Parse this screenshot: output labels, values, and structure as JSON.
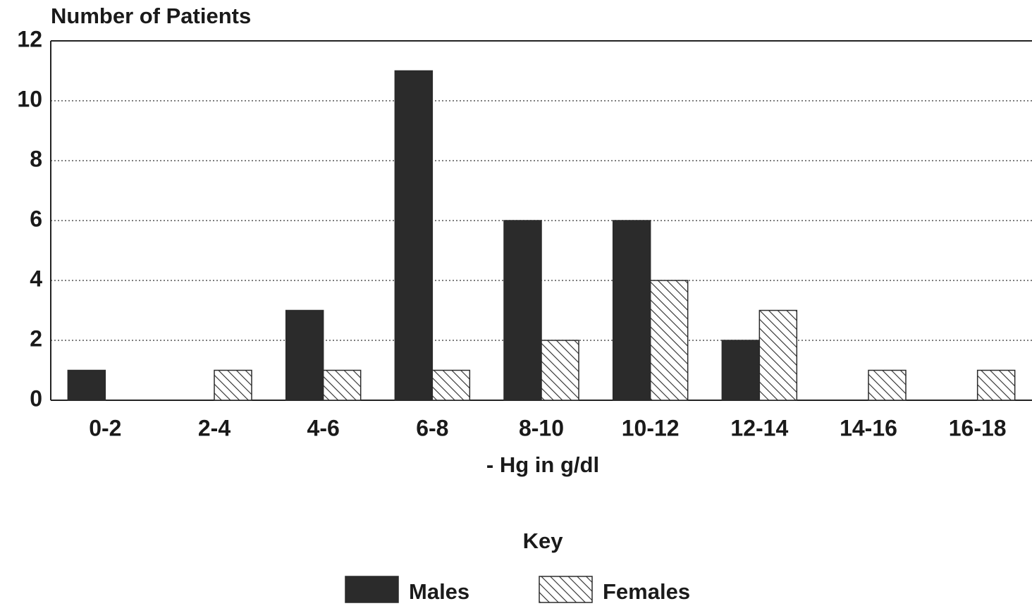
{
  "chart_data": {
    "type": "bar",
    "y_label": "Number of Patients",
    "x_label": "- Hg in g/dl",
    "legend_title": "Key",
    "categories": [
      "0-2",
      "2-4",
      "4-6",
      "6-8",
      "8-10",
      "10-12",
      "12-14",
      "14-16",
      "16-18"
    ],
    "series": [
      {
        "name": "Males",
        "color": "#2b2b2b",
        "fill": "solid",
        "values": [
          1,
          0,
          3,
          11,
          6,
          6,
          2,
          0,
          0
        ]
      },
      {
        "name": "Females",
        "color": "#2b2b2b",
        "fill": "hatch",
        "values": [
          0,
          1,
          1,
          1,
          2,
          4,
          3,
          1,
          1
        ]
      }
    ],
    "ylim": [
      0,
      12
    ],
    "yticks": [
      0,
      2,
      4,
      6,
      8,
      10,
      12
    ],
    "grid": true,
    "legend": "bottom"
  }
}
